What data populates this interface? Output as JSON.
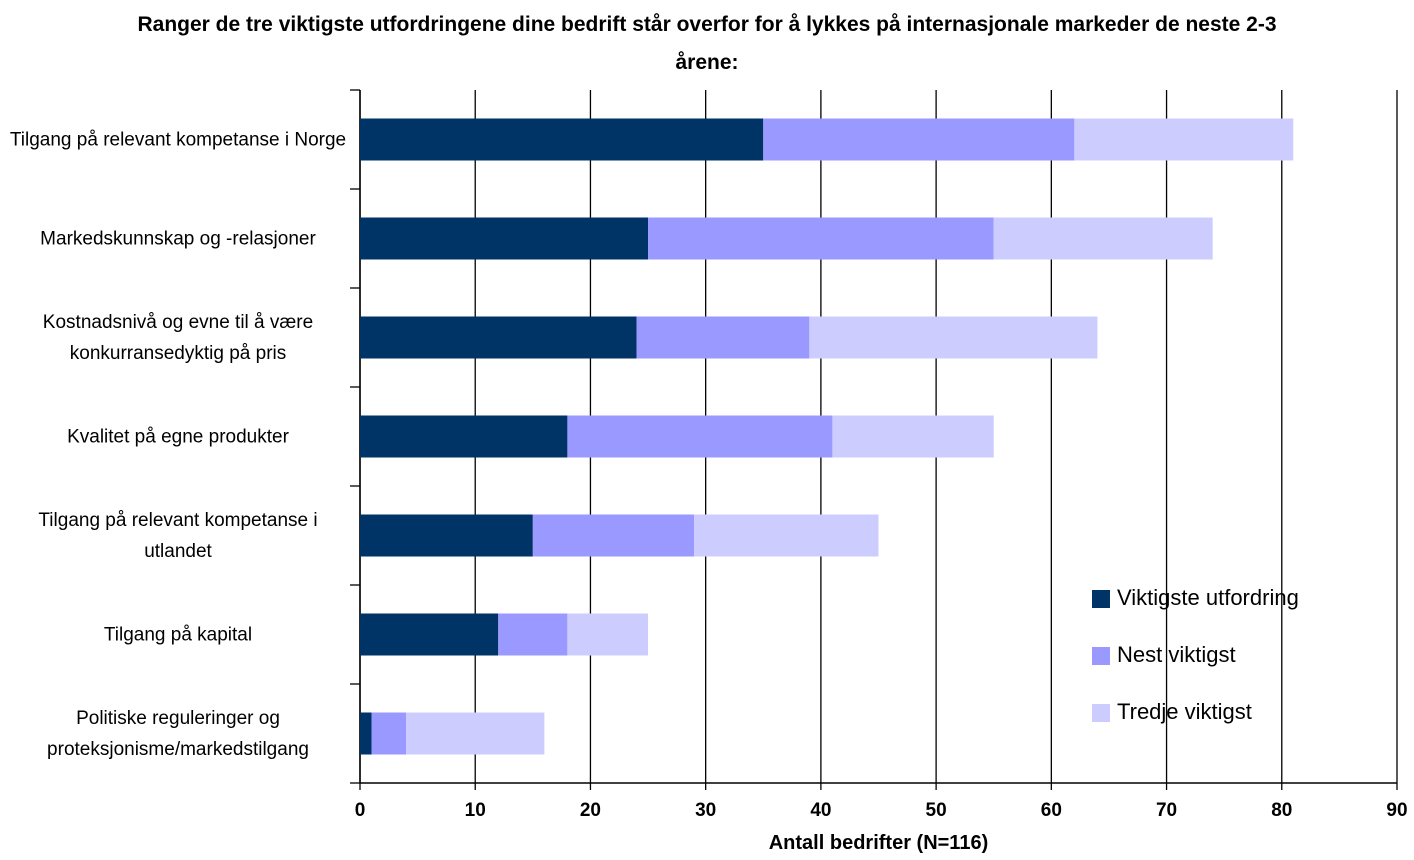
{
  "chart_data": {
    "type": "stacked-barh",
    "title": "Ranger de tre viktigste utfordringene dine bedrift står overfor for å lykkes på internasjonale markeder de neste 2-3 årene:",
    "xlabel": "Antall bedrifter (N=116)",
    "categories": [
      "Tilgang på relevant kompetanse i Norge",
      "Markedskunnskap og -relasjoner",
      "Kostnadsnivå og evne til å være konkurransedyktig på pris",
      "Kvalitet på egne produkter",
      "Tilgang på relevant kompetanse i utlandet",
      "Tilgang på kapital",
      "Politiske reguleringer og proteksjonisme/markedstilgang"
    ],
    "series": [
      {
        "name": "Viktigste utfordring",
        "color": "#003366",
        "values": [
          35,
          25,
          24,
          18,
          15,
          12,
          1
        ]
      },
      {
        "name": "Nest viktigst",
        "color": "#9999ff",
        "values": [
          27,
          30,
          15,
          23,
          14,
          6,
          3
        ]
      },
      {
        "name": "Tredje viktigst",
        "color": "#ccccff",
        "values": [
          19,
          19,
          25,
          14,
          16,
          7,
          12
        ]
      }
    ],
    "xlim": [
      0,
      90
    ],
    "xticks": [
      0,
      10,
      20,
      30,
      40,
      50,
      60,
      70,
      80,
      90
    ],
    "grid": true,
    "legend": "lower right"
  }
}
